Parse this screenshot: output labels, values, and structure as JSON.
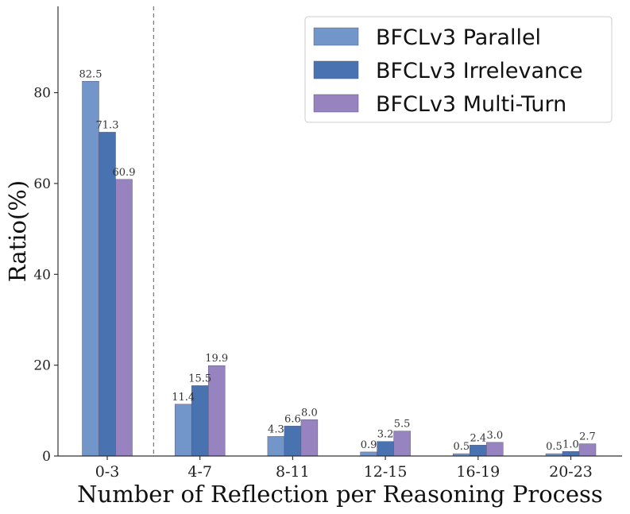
{
  "chart_data": {
    "type": "bar",
    "title": "",
    "xlabel": "Number of Reflection per Reasoning Process",
    "ylabel": "Ratio(%)",
    "ylim": [
      0,
      99
    ],
    "yticks": [
      0,
      20,
      40,
      60,
      80
    ],
    "categories": [
      "0-3",
      "4-7",
      "8-11",
      "12-15",
      "16-19",
      "20-23"
    ],
    "series": [
      {
        "name": "BFCLv3 Parallel",
        "color": "#7295ca",
        "values": [
          82.5,
          11.4,
          4.3,
          0.9,
          0.5,
          0.5
        ],
        "labels": [
          "82.5",
          "11.4",
          "4.3",
          "0.9",
          "0.5",
          "0.5"
        ]
      },
      {
        "name": "BFCLv3 Irrelevance",
        "color": "#4872b0",
        "values": [
          71.3,
          15.5,
          6.6,
          3.2,
          2.4,
          1.0
        ],
        "labels": [
          "71.3",
          "15.5",
          "6.6",
          "3.2",
          "2.4",
          "1.0"
        ]
      },
      {
        "name": "BFCLv3 Multi-Turn",
        "color": "#9683bf",
        "values": [
          60.9,
          19.9,
          8.0,
          5.5,
          3.0,
          2.7
        ],
        "labels": [
          "60.9",
          "19.9",
          "8.0",
          "5.5",
          "3.0",
          "2.7"
        ]
      }
    ],
    "legend_position": "top-right",
    "grid": false,
    "separator_after_category": "0-3"
  }
}
